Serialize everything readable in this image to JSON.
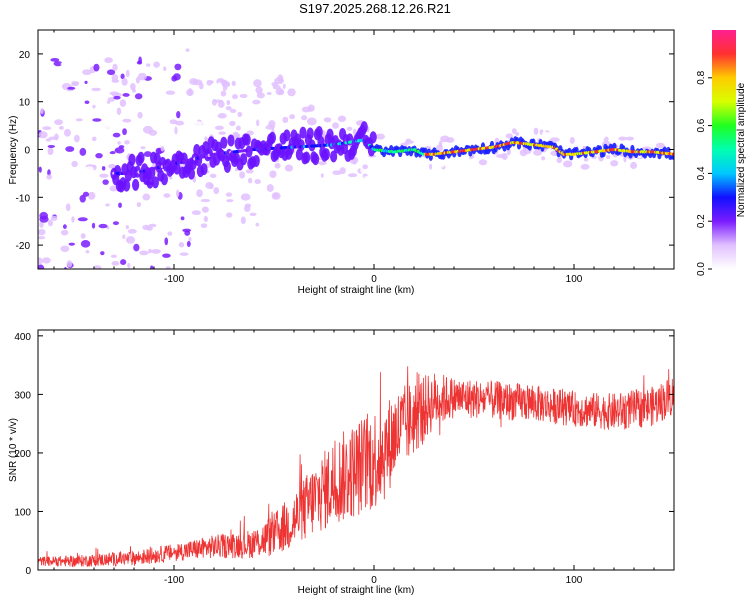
{
  "title": "S197.2025.268.12.26.R21",
  "chart_data": [
    {
      "type": "heatmap",
      "xlabel": "Height of straight line (km)",
      "ylabel": "Frequency (Hz)",
      "xlim": [
        -168,
        150
      ],
      "ylim": [
        -25,
        25
      ],
      "xticks": [
        -100,
        0,
        100
      ],
      "yticks": [
        -20,
        -10,
        0,
        10,
        20
      ],
      "ridge_x": [
        -120,
        -100,
        -80,
        -60,
        -40,
        -20,
        -5,
        0,
        10,
        20,
        25,
        30,
        40,
        50,
        60,
        70,
        80,
        90,
        95,
        100,
        110,
        120,
        130,
        140,
        150
      ],
      "ridge_freq": [
        -5,
        -3,
        -1,
        0,
        0.5,
        1,
        2,
        0,
        -0.5,
        0,
        -1,
        -1,
        -0.5,
        0,
        0.5,
        1.5,
        1,
        0.5,
        -1,
        -1,
        -0.5,
        0,
        -0.5,
        -0.5,
        -1
      ],
      "colorbar": {
        "label": "Normalized spectral amplitude",
        "ticks": [
          0.0,
          0.2,
          0.4,
          0.6,
          0.8
        ],
        "range": [
          0,
          1
        ]
      }
    },
    {
      "type": "line",
      "xlabel": "Height of straight line (km)",
      "ylabel": "SNR (10 * v/v)",
      "xlim": [
        -168,
        150
      ],
      "ylim": [
        0,
        410
      ],
      "xticks": [
        -100,
        0,
        100
      ],
      "yticks": [
        0,
        100,
        200,
        300,
        400
      ],
      "color": "#ee3333",
      "trend_x": [
        -168,
        -150,
        -120,
        -100,
        -80,
        -60,
        -50,
        -40,
        -30,
        -20,
        -10,
        0,
        5,
        10,
        20,
        30,
        40,
        60,
        80,
        100,
        120,
        140,
        150
      ],
      "trend_y": [
        15,
        15,
        20,
        30,
        40,
        45,
        60,
        85,
        120,
        150,
        170,
        190,
        200,
        230,
        260,
        290,
        295,
        290,
        285,
        275,
        270,
        280,
        300
      ],
      "noise_x": [
        -168,
        -100,
        -60,
        -40,
        -20,
        0,
        20,
        40,
        100,
        150
      ],
      "noise_amp": [
        8,
        15,
        25,
        50,
        75,
        90,
        65,
        35,
        30,
        35
      ]
    }
  ]
}
